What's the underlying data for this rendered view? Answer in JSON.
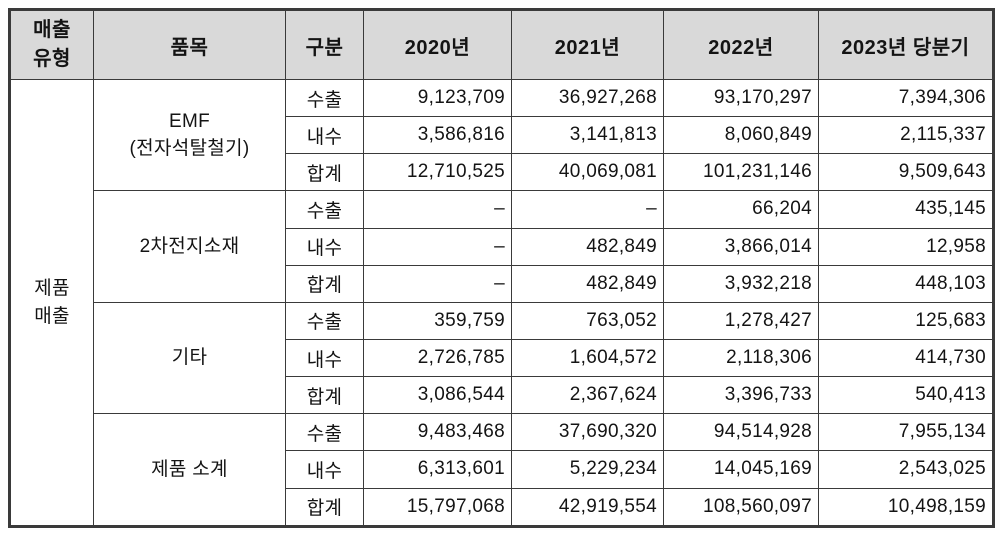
{
  "header": {
    "columns": [
      "매출\n유형",
      "품목",
      "구분",
      "2020년",
      "2021년",
      "2022년",
      "2023년 당분기"
    ]
  },
  "sales_type": "제품\n매출",
  "groups": [
    {
      "item": "EMF\n(전자석탈철기)",
      "rows": [
        {
          "label": "수출",
          "values": [
            "9,123,709",
            "36,927,268",
            "93,170,297",
            "7,394,306"
          ]
        },
        {
          "label": "내수",
          "values": [
            "3,586,816",
            "3,141,813",
            "8,060,849",
            "2,115,337"
          ]
        },
        {
          "label": "합계",
          "values": [
            "12,710,525",
            "40,069,081",
            "101,231,146",
            "9,509,643"
          ]
        }
      ]
    },
    {
      "item": "2차전지소재",
      "rows": [
        {
          "label": "수출",
          "values": [
            "–",
            "–",
            "66,204",
            "435,145"
          ]
        },
        {
          "label": "내수",
          "values": [
            "–",
            "482,849",
            "3,866,014",
            "12,958"
          ]
        },
        {
          "label": "합계",
          "values": [
            "–",
            "482,849",
            "3,932,218",
            "448,103"
          ]
        }
      ]
    },
    {
      "item": "기타",
      "rows": [
        {
          "label": "수출",
          "values": [
            "359,759",
            "763,052",
            "1,278,427",
            "125,683"
          ]
        },
        {
          "label": "내수",
          "values": [
            "2,726,785",
            "1,604,572",
            "2,118,306",
            "414,730"
          ]
        },
        {
          "label": "합계",
          "values": [
            "3,086,544",
            "2,367,624",
            "3,396,733",
            "540,413"
          ]
        }
      ]
    },
    {
      "item": "제품 소계",
      "rows": [
        {
          "label": "수출",
          "values": [
            "9,483,468",
            "37,690,320",
            "94,514,928",
            "7,955,134"
          ]
        },
        {
          "label": "내수",
          "values": [
            "6,313,601",
            "5,229,234",
            "14,045,169",
            "2,543,025"
          ]
        },
        {
          "label": "합계",
          "values": [
            "15,797,068",
            "42,919,554",
            "108,560,097",
            "10,498,159"
          ]
        }
      ]
    }
  ],
  "colors": {
    "header_bg": "#d9d9d9",
    "border": "#3a3a3a",
    "text": "#141414"
  }
}
